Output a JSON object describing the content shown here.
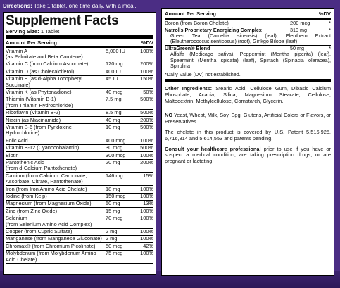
{
  "directions": {
    "label": "Directions:",
    "text": "Take 1 tablet, one time daily, with a meal."
  },
  "left": {
    "title": "Supplement Facts",
    "serving_label": "Serving Size:",
    "serving_value": "1 Tablet",
    "header": {
      "amount": "Amount Per Serving",
      "dv": "%DV"
    },
    "rows": [
      {
        "name": "Vitamin A",
        "sub": "(as Palmitate and Beta Carotene)",
        "amount": "5,000 IU",
        "dv": "100%"
      },
      {
        "name": "Vitamin C (from Calcium Ascorbate)",
        "sub": "",
        "amount": "120 mg",
        "dv": "200%"
      },
      {
        "name": "Vitamin D (as Cholecalciferol)",
        "sub": "",
        "amount": "400 IU",
        "dv": "100%"
      },
      {
        "name": "Vitamin E (as d-Alpha Tocopheryl Succinate)",
        "sub": "",
        "amount": "45 IU",
        "dv": "150%"
      },
      {
        "name": "Vitamin K (as Phytonadione)",
        "sub": "",
        "amount": "40 mcg",
        "dv": "50%"
      },
      {
        "name": "Thiamin (Vitamin B-1)",
        "sub": "(from Thiamin Hydrochloride)",
        "amount": "7.5 mg",
        "dv": "500%"
      },
      {
        "name": "Riboflavin (Vitamin B-2)",
        "sub": "",
        "amount": "8.5 mg",
        "dv": "500%"
      },
      {
        "name": "Niacin (as Niacinamide)",
        "sub": "",
        "amount": "40 mg",
        "dv": "200%"
      },
      {
        "name": "Vitamin B-6 (from Pyridoxine Hydrochloride)",
        "sub": "",
        "amount": "10 mg",
        "dv": "500%"
      },
      {
        "name": "Folic Acid",
        "sub": "",
        "amount": "400 mcg",
        "dv": "100%"
      },
      {
        "name": "Vitamin B-12 (Cyanocobalamin)",
        "sub": "",
        "amount": "30 mcg",
        "dv": "500%"
      },
      {
        "name": "Biotin",
        "sub": "",
        "amount": "300 mcg",
        "dv": "100%"
      },
      {
        "name": "Pantothenic Acid",
        "sub": "(from d-Calcium Pantothenate)",
        "amount": "20 mg",
        "dv": "200%"
      },
      {
        "name": "Calcium (from Calcium: Carbonate,",
        "sub": "Ascorbate, Citrate, Pantothenate)",
        "amount": "146 mg",
        "dv": "15%"
      },
      {
        "name": "Iron (from Iron Amino Acid Chelate)",
        "sub": "",
        "amount": "18 mg",
        "dv": "100%"
      },
      {
        "name": "Iodine (from Kelp)",
        "sub": "",
        "amount": "150 mcg",
        "dv": "100%"
      },
      {
        "name": "Magnesium (from Magnesium Oxide)",
        "sub": "",
        "amount": "50 mg",
        "dv": "13%"
      },
      {
        "name": "Zinc (from Zinc Oxide)",
        "sub": "",
        "amount": "15 mg",
        "dv": "100%"
      },
      {
        "name": "Selenium",
        "sub": "(from Selenium Amino Acid Complex)",
        "amount": "70 mcg",
        "dv": "100%"
      },
      {
        "name": "Copper (from Cupric Sulfate)",
        "sub": "",
        "amount": "2 mg",
        "dv": "100%"
      },
      {
        "name": "Manganese (from Manganese Gluconate)",
        "sub": "",
        "amount": "2 mg",
        "dv": "100%"
      },
      {
        "name": "Chromax® (from Chromium Picolinate)",
        "sub": "",
        "amount": "50 mcg",
        "dv": "42%"
      },
      {
        "name": "Molybdenum (from Molybdenum Amino",
        "sub": "Acid Chelate)",
        "amount": "75 mcg",
        "dv": "100%"
      }
    ]
  },
  "right": {
    "header": {
      "amount": "Amount Per Serving",
      "dv": "%DV"
    },
    "boron": {
      "name": "Boron (from Boron Chelate)",
      "amount": "200 mcg",
      "dv": "*"
    },
    "blend1": {
      "name": "Natrol's Proprietary Energizing Complex",
      "amount": "310 mg",
      "dv": "*",
      "body": "Green Tea (Camellia sinensis) (leaf), Eleuthero Extract (Eleutherococcus senticosus) (root), Ginkgo Biloba (leaf)"
    },
    "blend2": {
      "name": "UltraGreen® Blend",
      "amount": "50 mg",
      "dv": "*",
      "body": "Alfalfa (Medicago sativa), Peppermint (Mentha piperita) (leaf), Spearmint (Mentha spicata) (leaf), Spinach (Spinacia oleracea), Spirulina"
    },
    "note": "*Daily Value (DV) not established.",
    "other_label": "Other Ingredients:",
    "other_text": "Stearic Acid, Cellulose Gum, Dibasic Calcium Phosphate, Acacia, Silica, Magnesium Stearate, Cellulose, Maltodextrin, Methylcellulose, Cornstarch, Glycerin.",
    "no_label": "NO",
    "no_text": "Yeast, Wheat, Milk, Soy, Egg, Glutens, Artificial Colors or Flavors, or Preservatives",
    "patent_text": "The chelate in this product is covered by U.S. Patent 5,516,925, 6,716,814 and 5,614,553 and patents pending.",
    "consult_label": "Consult your healthcare professional",
    "consult_text": "prior to use if you have or suspect a medical condition, are taking prescription drugs, or are pregnant or lactating."
  }
}
